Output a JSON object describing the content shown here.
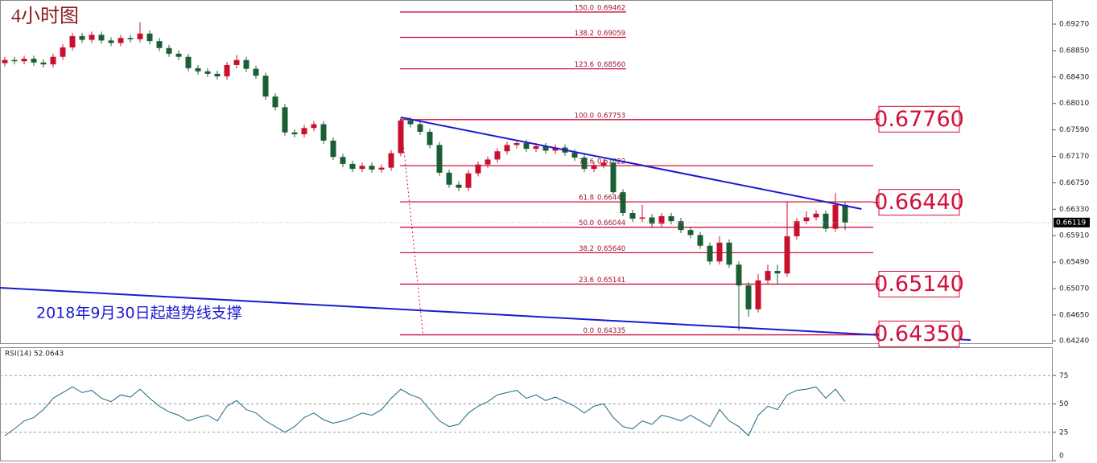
{
  "chart_data": [
    {
      "type": "candlestick",
      "title": "4小时图",
      "annotation": "2018年9月30日起趋势线支撑",
      "up_color": "#c8102e",
      "down_color": "#1b5e34",
      "line_color": "#d0103a",
      "trend_color": "#1a1ad0",
      "ylim": [
        0.64189,
        0.69653
      ],
      "yticks": [
        {
          "value": 0.6927,
          "label": "0.69270"
        },
        {
          "value": 0.6885,
          "label": "0.68850"
        },
        {
          "value": 0.6843,
          "label": "0.68430"
        },
        {
          "value": 0.6801,
          "label": "0.68010"
        },
        {
          "value": 0.6759,
          "label": "0.67590"
        },
        {
          "value": 0.6717,
          "label": "0.67170"
        },
        {
          "value": 0.6675,
          "label": "0.66750"
        },
        {
          "value": 0.6633,
          "label": "0.66330"
        },
        {
          "value": 0.6591,
          "label": "0.65910"
        },
        {
          "value": 0.6549,
          "label": "0.65490"
        },
        {
          "value": 0.6507,
          "label": "0.65070"
        },
        {
          "value": 0.6465,
          "label": "0.64650"
        },
        {
          "value": 0.6424,
          "label": "0.64240"
        }
      ],
      "open": [
        0.6865,
        0.687,
        0.6868,
        0.6872,
        0.6866,
        0.6863,
        0.6875,
        0.689,
        0.6908,
        0.6902,
        0.691,
        0.6901,
        0.6897,
        0.6905,
        0.6903,
        0.6912,
        0.69,
        0.6889,
        0.688,
        0.6875,
        0.6857,
        0.6852,
        0.6848,
        0.6844,
        0.6862,
        0.687,
        0.6856,
        0.6845,
        0.6812,
        0.6795,
        0.6755,
        0.6752,
        0.6762,
        0.6768,
        0.6742,
        0.6716,
        0.6705,
        0.6697,
        0.6702,
        0.6696,
        0.6699,
        0.6722,
        0.6774,
        0.6768,
        0.6756,
        0.6735,
        0.6691,
        0.6672,
        0.6667,
        0.669,
        0.6704,
        0.6712,
        0.6725,
        0.6735,
        0.6738,
        0.6729,
        0.6733,
        0.6726,
        0.6731,
        0.6723,
        0.6715,
        0.6697,
        0.6703,
        0.6707,
        0.666,
        0.6627,
        0.6618,
        0.662,
        0.661,
        0.6622,
        0.6614,
        0.66,
        0.6592,
        0.6575,
        0.655,
        0.658,
        0.6545,
        0.6512,
        0.6474,
        0.652,
        0.6535,
        0.6531,
        0.659,
        0.6614,
        0.662,
        0.6626,
        0.6602,
        0.664
      ],
      "high": [
        0.6875,
        0.6875,
        0.6877,
        0.6877,
        0.6871,
        0.688,
        0.6895,
        0.6913,
        0.6913,
        0.6915,
        0.6915,
        0.6906,
        0.691,
        0.691,
        0.693,
        0.6917,
        0.6905,
        0.6894,
        0.6885,
        0.688,
        0.6862,
        0.6857,
        0.6853,
        0.6867,
        0.6878,
        0.6875,
        0.6861,
        0.685,
        0.6817,
        0.68,
        0.676,
        0.6767,
        0.6773,
        0.6773,
        0.6747,
        0.6721,
        0.671,
        0.6707,
        0.6707,
        0.6704,
        0.6727,
        0.6779,
        0.6779,
        0.6773,
        0.6761,
        0.674,
        0.6696,
        0.6677,
        0.6695,
        0.6709,
        0.6717,
        0.673,
        0.674,
        0.6743,
        0.6743,
        0.6738,
        0.6738,
        0.6736,
        0.6736,
        0.6728,
        0.672,
        0.6708,
        0.6712,
        0.6712,
        0.6665,
        0.6632,
        0.664,
        0.6625,
        0.6627,
        0.6627,
        0.6619,
        0.6605,
        0.6597,
        0.658,
        0.659,
        0.6585,
        0.655,
        0.6517,
        0.653,
        0.6545,
        0.6545,
        0.6644,
        0.6619,
        0.663,
        0.6631,
        0.6631,
        0.6659,
        0.6645
      ],
      "low": [
        0.686,
        0.6863,
        0.6863,
        0.6861,
        0.6858,
        0.6858,
        0.687,
        0.6885,
        0.6897,
        0.6897,
        0.6896,
        0.6892,
        0.6892,
        0.6898,
        0.6898,
        0.6895,
        0.6884,
        0.6875,
        0.687,
        0.6852,
        0.6847,
        0.6843,
        0.6839,
        0.6839,
        0.6857,
        0.6851,
        0.684,
        0.6807,
        0.679,
        0.675,
        0.6747,
        0.6747,
        0.6757,
        0.6737,
        0.6711,
        0.67,
        0.6692,
        0.6692,
        0.6691,
        0.6691,
        0.6694,
        0.6717,
        0.6763,
        0.6751,
        0.673,
        0.6686,
        0.6667,
        0.6662,
        0.6662,
        0.6685,
        0.6699,
        0.6707,
        0.672,
        0.673,
        0.6724,
        0.6724,
        0.6721,
        0.6721,
        0.6718,
        0.671,
        0.6692,
        0.6692,
        0.6698,
        0.6655,
        0.6622,
        0.6613,
        0.6613,
        0.6605,
        0.6605,
        0.6609,
        0.6595,
        0.6587,
        0.657,
        0.6545,
        0.6545,
        0.654,
        0.644,
        0.6462,
        0.6469,
        0.6515,
        0.6514,
        0.6526,
        0.6585,
        0.6609,
        0.6615,
        0.6597,
        0.6597,
        0.66
      ],
      "close": [
        0.687,
        0.6868,
        0.6872,
        0.6866,
        0.6863,
        0.6875,
        0.689,
        0.6908,
        0.6902,
        0.691,
        0.6901,
        0.6897,
        0.6905,
        0.6903,
        0.6912,
        0.69,
        0.6889,
        0.688,
        0.6875,
        0.6857,
        0.6852,
        0.6848,
        0.6844,
        0.6862,
        0.687,
        0.6856,
        0.6845,
        0.6812,
        0.6795,
        0.6755,
        0.6752,
        0.6762,
        0.6768,
        0.6742,
        0.6716,
        0.6705,
        0.6697,
        0.6702,
        0.6696,
        0.6699,
        0.6722,
        0.6774,
        0.6768,
        0.6756,
        0.6735,
        0.6691,
        0.6672,
        0.6667,
        0.669,
        0.6704,
        0.6712,
        0.6725,
        0.6735,
        0.6738,
        0.6729,
        0.6733,
        0.6726,
        0.6731,
        0.6723,
        0.6715,
        0.6697,
        0.6703,
        0.6707,
        0.666,
        0.6627,
        0.6618,
        0.662,
        0.661,
        0.6622,
        0.6614,
        0.66,
        0.6592,
        0.6575,
        0.655,
        0.658,
        0.6545,
        0.6512,
        0.6474,
        0.652,
        0.6535,
        0.6531,
        0.659,
        0.6614,
        0.662,
        0.6626,
        0.6602,
        0.664,
        0.66119
      ],
      "fib_levels": [
        {
          "ratio": {
            "value": 150,
            "label": "150.0"
          },
          "price": 0.69462
        },
        {
          "ratio": 138.2,
          "price": 0.69059
        },
        {
          "ratio": 123.6,
          "price": {
            "value": 0.6856,
            "label": "0.68560"
          }
        },
        {
          "ratio": {
            "value": 100,
            "label": "100.0"
          },
          "price": 0.67753
        },
        {
          "ratio": 78.6,
          "price": 0.67022
        },
        {
          "ratio": 61.8,
          "price": 0.66447
        },
        {
          "ratio": {
            "value": 50,
            "label": "50.0"
          },
          "price": 0.66044
        },
        {
          "ratio": 38.2,
          "price": {
            "value": 0.6564,
            "label": "0.65640"
          }
        },
        {
          "ratio": 23.6,
          "price": 0.65141
        },
        {
          "ratio": {
            "value": 0,
            "label": "0.0"
          },
          "price": 0.64335
        }
      ],
      "key_levels": [
        {
          "value": 0.6776,
          "label": "0.67760"
        },
        {
          "value": 0.6644,
          "label": "0.66440"
        },
        {
          "value": 0.6514,
          "label": "0.65140"
        },
        {
          "value": 0.6435,
          "label": "0.64350"
        }
      ],
      "trendlines": [
        {
          "x": [
            41,
            88.7
          ],
          "y": [
            0.67789,
            0.66334
          ]
        },
        {
          "x": [
            -0.5,
            100
          ],
          "y": [
            0.65083,
            0.64253
          ]
        }
      ],
      "fib_swing": {
        "x": [
          41,
          43.3
        ],
        "y": [
          0.67753,
          0.64335
        ]
      }
    },
    {
      "type": "line",
      "title": "RSI(14) 52.0643",
      "color": "#1a6a80",
      "ylim": [
        0,
        100
      ],
      "yticks": [
        0,
        25,
        50,
        75
      ],
      "levels": [
        25,
        50,
        75
      ],
      "values": [
        22,
        28,
        35,
        38,
        45,
        55,
        60,
        65,
        60,
        62,
        55,
        52,
        58,
        56,
        63,
        55,
        48,
        43,
        40,
        35,
        38,
        40,
        35,
        48,
        53,
        45,
        42,
        35,
        30,
        25,
        30,
        38,
        42,
        36,
        33,
        35,
        38,
        42,
        40,
        45,
        55,
        63,
        58,
        55,
        45,
        35,
        30,
        32,
        42,
        48,
        52,
        58,
        60,
        62,
        55,
        58,
        53,
        56,
        52,
        48,
        42,
        48,
        50,
        38,
        30,
        28,
        35,
        32,
        40,
        38,
        35,
        40,
        35,
        30,
        45,
        35,
        30,
        22,
        40,
        48,
        45,
        58,
        62,
        63,
        65,
        55,
        63,
        52.0643
      ]
    }
  ]
}
